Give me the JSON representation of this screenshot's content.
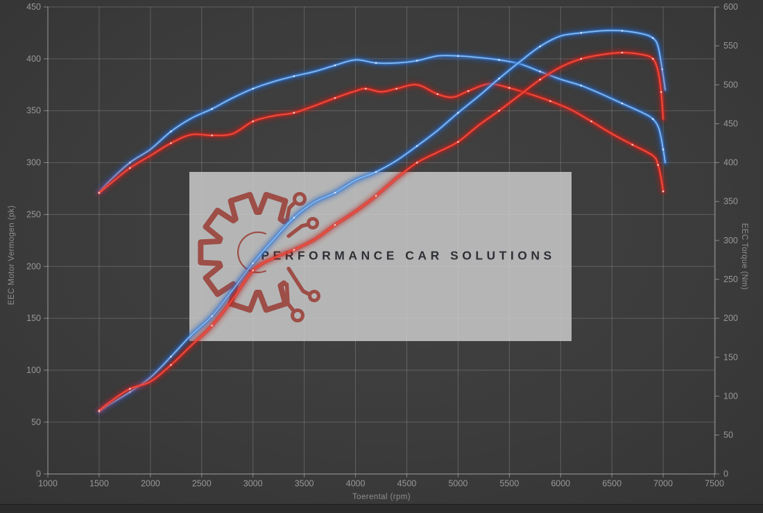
{
  "watermark": {
    "text": "PERFORMANCE CAR SOLUTIONS"
  },
  "colors": {
    "background": "#3b3b3b",
    "grid": "rgba(230,230,230,0.22)",
    "axis": "rgba(230,230,230,0.45)",
    "tick_text": "#989898",
    "watermark_box": "rgba(204,204,204,0.84)",
    "logo_red": "#9a4038",
    "watermark_text": "#2e3036",
    "blue_core": "#8abdf0",
    "blue_glow": "#1c5ec4",
    "red_core": "#f4503e",
    "red_glow": "#b81d18"
  },
  "chart_data": {
    "type": "line",
    "title": "",
    "xlabel": "Toerental (rpm)",
    "ylabel_left": "EEC Motor Vermogen (pk)",
    "ylabel_right": "EEC Torque (Nm)",
    "x_range": [
      1000,
      7500
    ],
    "y_left_range": [
      0,
      450
    ],
    "y_right_range": [
      0,
      600
    ],
    "x_ticks": [
      1000,
      1500,
      2000,
      2500,
      3000,
      3500,
      4000,
      4500,
      5000,
      5500,
      6000,
      6500,
      7000,
      7500
    ],
    "y_left_ticks": [
      0,
      50,
      100,
      150,
      200,
      250,
      300,
      350,
      400,
      450
    ],
    "y_right_ticks": [
      0,
      50,
      100,
      150,
      200,
      250,
      300,
      350,
      400,
      450,
      500,
      550,
      600
    ],
    "grid": true,
    "legend_position": "none",
    "series": [
      {
        "name": "torque-blue",
        "axis": "right",
        "unit": "Nm",
        "glow": "#1c5ec4",
        "mid": "#3c82dd",
        "core": "#8abdf0",
        "marker": "#e8f2ff",
        "points": [
          [
            1500,
            362
          ],
          [
            1600,
            376
          ],
          [
            1800,
            400
          ],
          [
            2000,
            417
          ],
          [
            2200,
            440
          ],
          [
            2400,
            457
          ],
          [
            2600,
            469
          ],
          [
            2800,
            483
          ],
          [
            3000,
            495
          ],
          [
            3200,
            504
          ],
          [
            3400,
            511
          ],
          [
            3600,
            517
          ],
          [
            3800,
            525
          ],
          [
            4000,
            532
          ],
          [
            4200,
            528
          ],
          [
            4400,
            528
          ],
          [
            4600,
            531
          ],
          [
            4800,
            537
          ],
          [
            5000,
            537
          ],
          [
            5200,
            535
          ],
          [
            5400,
            532
          ],
          [
            5600,
            527
          ],
          [
            5800,
            517
          ],
          [
            6000,
            507
          ],
          [
            6200,
            499
          ],
          [
            6400,
            488
          ],
          [
            6600,
            476
          ],
          [
            6800,
            464
          ],
          [
            6900,
            456
          ],
          [
            6960,
            443
          ],
          [
            7000,
            417
          ],
          [
            7020,
            400
          ]
        ]
      },
      {
        "name": "torque-red",
        "axis": "right",
        "unit": "Nm",
        "glow": "#b81d18",
        "mid": "#d92b25",
        "core": "#f4503e",
        "marker": "#ffe2dc",
        "points": [
          [
            1500,
            361
          ],
          [
            1600,
            372
          ],
          [
            1800,
            393
          ],
          [
            2000,
            409
          ],
          [
            2200,
            425
          ],
          [
            2400,
            436
          ],
          [
            2600,
            435
          ],
          [
            2800,
            437
          ],
          [
            3000,
            453
          ],
          [
            3200,
            460
          ],
          [
            3400,
            464
          ],
          [
            3600,
            473
          ],
          [
            3800,
            483
          ],
          [
            4000,
            492
          ],
          [
            4100,
            495
          ],
          [
            4250,
            491
          ],
          [
            4400,
            495
          ],
          [
            4600,
            500
          ],
          [
            4800,
            488
          ],
          [
            4950,
            484
          ],
          [
            5100,
            492
          ],
          [
            5300,
            501
          ],
          [
            5500,
            496
          ],
          [
            5700,
            488
          ],
          [
            5900,
            479
          ],
          [
            6100,
            468
          ],
          [
            6300,
            453
          ],
          [
            6500,
            437
          ],
          [
            6700,
            423
          ],
          [
            6900,
            409
          ],
          [
            6950,
            397
          ],
          [
            6980,
            380
          ],
          [
            7000,
            363
          ]
        ]
      },
      {
        "name": "power-blue",
        "axis": "left",
        "unit": "pk",
        "glow": "#1c5ec4",
        "mid": "#3c82dd",
        "core": "#8abdf0",
        "marker": "#e8f2ff",
        "points": [
          [
            1500,
            60
          ],
          [
            1600,
            67
          ],
          [
            1800,
            79
          ],
          [
            2000,
            93
          ],
          [
            2200,
            113
          ],
          [
            2400,
            134
          ],
          [
            2600,
            152
          ],
          [
            2800,
            177
          ],
          [
            3000,
            203
          ],
          [
            3200,
            226
          ],
          [
            3400,
            247
          ],
          [
            3600,
            262
          ],
          [
            3800,
            271
          ],
          [
            4000,
            283
          ],
          [
            4200,
            291
          ],
          [
            4400,
            302
          ],
          [
            4600,
            316
          ],
          [
            4800,
            331
          ],
          [
            5000,
            348
          ],
          [
            5200,
            364
          ],
          [
            5400,
            381
          ],
          [
            5600,
            397
          ],
          [
            5800,
            412
          ],
          [
            6000,
            422
          ],
          [
            6200,
            425
          ],
          [
            6400,
            427
          ],
          [
            6600,
            427
          ],
          [
            6800,
            424
          ],
          [
            6900,
            420
          ],
          [
            6950,
            412
          ],
          [
            6990,
            390
          ],
          [
            7020,
            370
          ]
        ]
      },
      {
        "name": "power-red",
        "axis": "left",
        "unit": "pk",
        "glow": "#b81d18",
        "mid": "#d92b25",
        "core": "#f4503e",
        "marker": "#ffe2dc",
        "points": [
          [
            1500,
            61
          ],
          [
            1600,
            69
          ],
          [
            1800,
            82
          ],
          [
            2000,
            89
          ],
          [
            2200,
            105
          ],
          [
            2400,
            124
          ],
          [
            2600,
            143
          ],
          [
            2800,
            168
          ],
          [
            3000,
            196
          ],
          [
            3200,
            208
          ],
          [
            3400,
            216
          ],
          [
            3600,
            226
          ],
          [
            3800,
            240
          ],
          [
            4000,
            253
          ],
          [
            4200,
            268
          ],
          [
            4400,
            285
          ],
          [
            4600,
            300
          ],
          [
            4800,
            310
          ],
          [
            5000,
            320
          ],
          [
            5200,
            336
          ],
          [
            5400,
            350
          ],
          [
            5600,
            365
          ],
          [
            5800,
            380
          ],
          [
            6000,
            392
          ],
          [
            6200,
            400
          ],
          [
            6400,
            404
          ],
          [
            6600,
            406
          ],
          [
            6800,
            404
          ],
          [
            6900,
            400
          ],
          [
            6950,
            388
          ],
          [
            6980,
            368
          ],
          [
            7000,
            342
          ]
        ]
      }
    ]
  }
}
